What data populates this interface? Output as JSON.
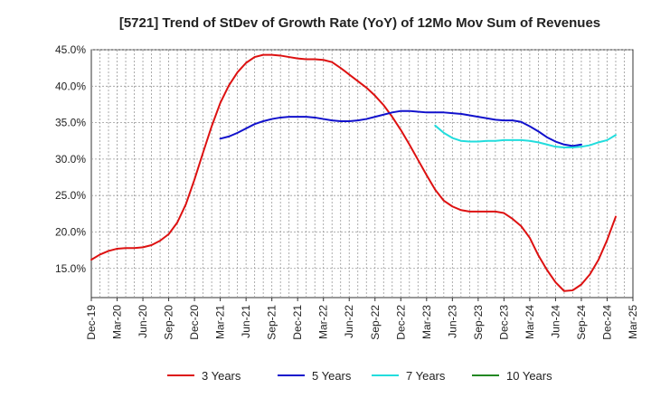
{
  "chart_data": {
    "type": "line",
    "title": "[5721]  Trend of StDev of Growth Rate (YoY) of 12Mo Mov Sum of Revenues",
    "xlabel": "",
    "ylabel": "",
    "ylim": [
      0.11,
      0.45
    ],
    "y_ticks": [
      {
        "value": 0.15,
        "label": "15.0%"
      },
      {
        "value": 0.2,
        "label": "20.0%"
      },
      {
        "value": 0.25,
        "label": "25.0%"
      },
      {
        "value": 0.3,
        "label": "30.0%"
      },
      {
        "value": 0.35,
        "label": "35.0%"
      },
      {
        "value": 0.4,
        "label": "40.0%"
      },
      {
        "value": 0.45,
        "label": "45.0%"
      }
    ],
    "x_ticks": [
      "Dec-19",
      "Mar-20",
      "Jun-20",
      "Sep-20",
      "Dec-20",
      "Mar-21",
      "Jun-21",
      "Sep-21",
      "Dec-21",
      "Mar-22",
      "Jun-22",
      "Sep-22",
      "Dec-22",
      "Mar-23",
      "Jun-23",
      "Sep-23",
      "Dec-23",
      "Mar-24",
      "Jun-24",
      "Sep-24",
      "Dec-24",
      "Mar-25"
    ],
    "x_range": [
      0,
      63
    ],
    "grid": true,
    "legend_position": "bottom",
    "series": [
      {
        "name": "3 Years",
        "color": "#dd1111",
        "start_index": 0,
        "values": [
          0.162,
          0.169,
          0.174,
          0.177,
          0.178,
          0.178,
          0.179,
          0.182,
          0.188,
          0.197,
          0.213,
          0.238,
          0.272,
          0.309,
          0.345,
          0.377,
          0.401,
          0.419,
          0.432,
          0.44,
          0.443,
          0.443,
          0.442,
          0.44,
          0.438,
          0.437,
          0.437,
          0.436,
          0.433,
          0.425,
          0.416,
          0.407,
          0.398,
          0.387,
          0.374,
          0.358,
          0.34,
          0.32,
          0.299,
          0.278,
          0.258,
          0.243,
          0.235,
          0.23,
          0.228,
          0.228,
          0.228,
          0.228,
          0.226,
          0.218,
          0.208,
          0.192,
          0.168,
          0.148,
          0.131,
          0.119,
          0.12,
          0.128,
          0.142,
          0.162,
          0.189,
          0.221
        ]
      },
      {
        "name": "5 Years",
        "color": "#1111cc",
        "start_index": 15,
        "values": [
          0.328,
          0.331,
          0.336,
          0.342,
          0.348,
          0.352,
          0.355,
          0.357,
          0.358,
          0.358,
          0.358,
          0.357,
          0.355,
          0.353,
          0.352,
          0.352,
          0.353,
          0.355,
          0.358,
          0.361,
          0.364,
          0.366,
          0.366,
          0.365,
          0.364,
          0.364,
          0.364,
          0.363,
          0.362,
          0.36,
          0.358,
          0.356,
          0.354,
          0.353,
          0.353,
          0.351,
          0.345,
          0.338,
          0.33,
          0.324,
          0.32,
          0.318,
          0.32
        ]
      },
      {
        "name": "7 Years",
        "color": "#22dddd",
        "start_index": 40,
        "values": [
          0.346,
          0.336,
          0.329,
          0.325,
          0.324,
          0.324,
          0.325,
          0.325,
          0.326,
          0.326,
          0.326,
          0.325,
          0.323,
          0.32,
          0.317,
          0.316,
          0.316,
          0.317,
          0.319,
          0.323,
          0.326,
          0.333
        ]
      },
      {
        "name": "10 Years",
        "color": "#228822",
        "start_index": 0,
        "values": []
      }
    ]
  }
}
